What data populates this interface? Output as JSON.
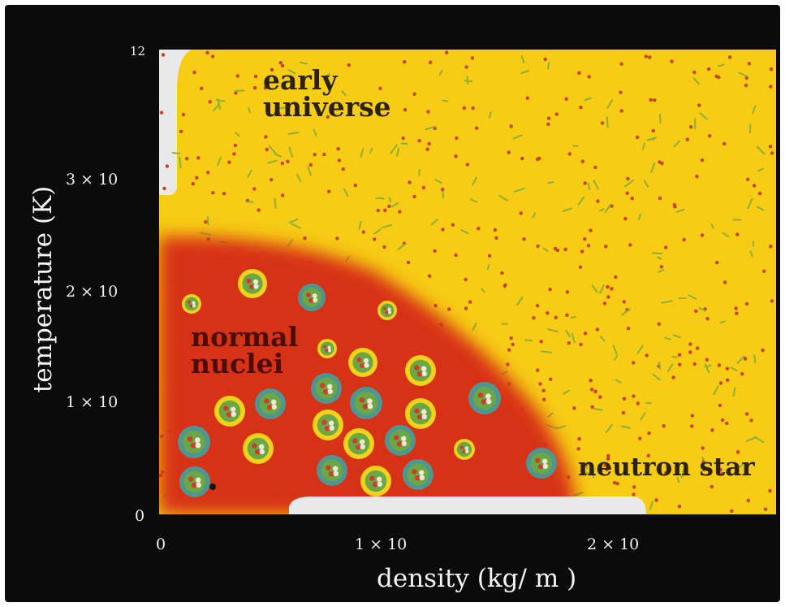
{
  "regions": {
    "early_universe_line1": "early",
    "early_universe_line2": "universe",
    "normal_nuclei_line1": "normal",
    "normal_nuclei_line2": "nuclei",
    "neutron_star": "neutron star"
  },
  "axes": {
    "x_title": "density (kg/ m   )",
    "y_title": "temperature (K)",
    "y_ticks": [
      "12",
      "3 × 10",
      "2 × 10",
      "1 × 10",
      "0"
    ],
    "x_ticks": [
      "0",
      "1 × 10",
      "2 × 10"
    ]
  },
  "colors": {
    "background": "#0b0b0b",
    "quark_gluon_plasma": "#f6cc14",
    "hadron_gas": "#d83015",
    "nucleus_ring_yellow": "#f2d21a",
    "nucleus_ring_teal": "#4f9692",
    "nucleus_center": "#6aa845",
    "white_boundary": "#e9e9ea"
  }
}
